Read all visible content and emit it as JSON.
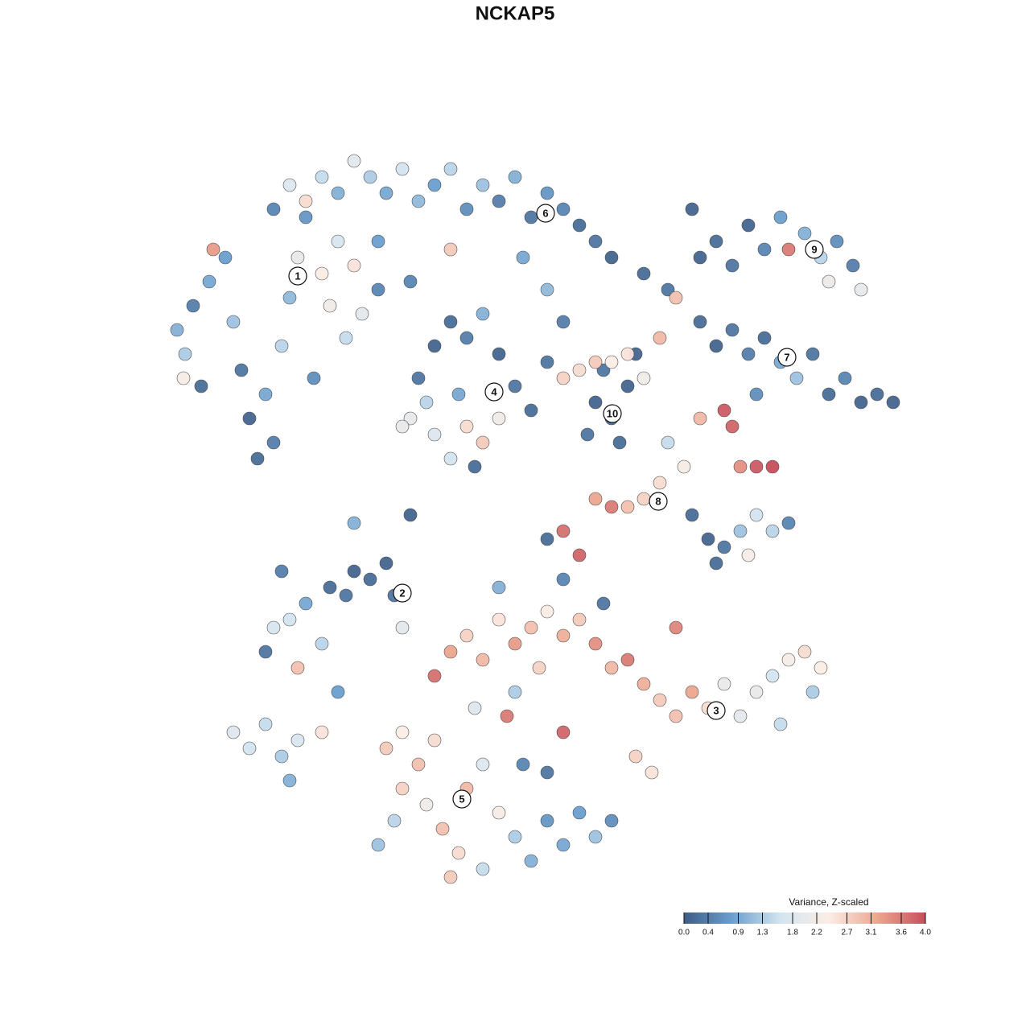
{
  "chart_data": {
    "type": "scatter",
    "title": "NCKAP5",
    "xlim": [
      0,
      93
    ],
    "ylim": [
      0,
      92
    ],
    "x": [
      2,
      3,
      4,
      6,
      5,
      8,
      9,
      10,
      11,
      12,
      14,
      13,
      15,
      16,
      17,
      18,
      20,
      21,
      22,
      24,
      23,
      19,
      25,
      27,
      6.5,
      2.8,
      14,
      16,
      18,
      20,
      22,
      24,
      26,
      28,
      30,
      32,
      34,
      36,
      38,
      40,
      42,
      44,
      46,
      48,
      50,
      52,
      54,
      56,
      60,
      63,
      45,
      48,
      50,
      36,
      27,
      31,
      31,
      32,
      34,
      36,
      38,
      40,
      42,
      44,
      46,
      34,
      36,
      38,
      40,
      42,
      37,
      33,
      54,
      56,
      58,
      55,
      57,
      59,
      53,
      48,
      50,
      52,
      54,
      56,
      58,
      60,
      62,
      67,
      69,
      71,
      73,
      75,
      77,
      78,
      80,
      82,
      84,
      86,
      87,
      83,
      66,
      67,
      69,
      71,
      73,
      75,
      77,
      79,
      81,
      83,
      85,
      87,
      89,
      91,
      74,
      64,
      63,
      65,
      67,
      70,
      71,
      72,
      74,
      76,
      62,
      60,
      58,
      56,
      54,
      66,
      68,
      70,
      72,
      74,
      76,
      78,
      73,
      69,
      50,
      52,
      48,
      13,
      14,
      16,
      17,
      18,
      20,
      21,
      23,
      24,
      26,
      28,
      29,
      30,
      15,
      22,
      34,
      36,
      38,
      40,
      42,
      44,
      46,
      48,
      50,
      52,
      54,
      56,
      58,
      60,
      62,
      64,
      66,
      68,
      70,
      72,
      74,
      76,
      78,
      80,
      82,
      81,
      77,
      59,
      61,
      44,
      47,
      39,
      55,
      50,
      42,
      64,
      50,
      43,
      28,
      30,
      32,
      34,
      30,
      33,
      35,
      37,
      38,
      40,
      42,
      44,
      46,
      48,
      50,
      52,
      54,
      56,
      40,
      36,
      29,
      45,
      48,
      27,
      9,
      11,
      13,
      15,
      17,
      20,
      16,
      24,
      31,
      39,
      30
    ],
    "y": [
      69,
      66,
      72,
      75,
      62,
      78,
      70,
      64,
      58,
      53,
      55,
      61,
      67,
      73,
      78,
      83,
      76,
      72,
      80,
      77,
      68,
      63,
      71,
      74,
      79,
      63,
      84,
      87,
      85,
      88,
      86,
      90,
      88,
      86,
      89,
      85,
      87,
      89,
      84,
      87,
      85,
      88,
      83,
      86,
      84,
      82,
      80,
      78,
      76,
      74,
      78,
      74,
      70,
      79,
      80,
      75,
      58,
      63,
      67,
      70,
      68,
      71,
      66,
      62,
      59,
      56,
      53,
      57,
      55,
      58,
      61,
      60,
      60,
      58,
      62,
      64,
      55,
      66,
      56,
      65,
      63,
      64,
      65,
      65,
      66,
      63,
      68,
      78,
      80,
      77,
      82,
      79,
      83,
      79,
      81,
      78,
      80,
      77,
      74,
      75,
      84,
      70,
      67,
      69,
      66,
      68,
      65,
      63,
      66,
      61,
      63,
      60,
      61,
      60,
      61,
      73,
      55,
      52,
      58,
      59,
      57,
      52,
      52,
      52,
      50,
      48,
      47,
      47,
      48,
      46,
      43,
      42,
      44,
      46,
      44,
      45,
      41,
      40,
      44,
      41,
      43,
      29,
      32,
      33,
      27,
      35,
      30,
      37,
      36,
      39,
      38,
      40,
      36,
      32,
      39,
      24,
      26,
      29,
      31,
      28,
      33,
      30,
      32,
      34,
      31,
      33,
      30,
      27,
      28,
      25,
      23,
      21,
      24,
      22,
      25,
      21,
      24,
      26,
      28,
      29,
      27,
      24,
      20,
      16,
      14,
      24,
      27,
      22,
      35,
      38,
      37,
      32,
      19,
      21,
      17,
      19,
      15,
      18,
      12,
      10,
      7,
      4,
      12,
      15,
      9,
      6,
      3,
      8,
      5,
      9,
      6,
      8,
      2,
      1,
      8,
      15,
      14,
      5,
      19,
      17,
      20,
      16,
      18,
      19,
      13,
      45,
      46,
      52,
      57
    ],
    "values": [
      1.0,
      1.3,
      0.4,
      0.9,
      0.2,
      0.8,
      1.2,
      0.3,
      0.1,
      0.2,
      0.4,
      0.9,
      1.4,
      1.1,
      2.0,
      0.7,
      2.4,
      2.2,
      1.7,
      2.5,
      1.5,
      0.6,
      1.9,
      0.5,
      3.3,
      2.3,
      0.5,
      1.8,
      2.6,
      1.5,
      1.0,
      1.9,
      1.3,
      0.9,
      1.6,
      1.1,
      0.8,
      1.4,
      0.6,
      1.2,
      0.4,
      1.0,
      0.3,
      0.7,
      0.5,
      0.2,
      0.3,
      0.1,
      0.2,
      0.3,
      0.9,
      1.1,
      0.4,
      2.8,
      0.8,
      0.5,
      2.0,
      0.3,
      0.1,
      0.2,
      0.4,
      1.0,
      0.1,
      0.3,
      0.2,
      1.8,
      1.6,
      2.6,
      2.8,
      2.2,
      0.9,
      1.4,
      0.1,
      0.2,
      0.1,
      0.3,
      0.2,
      0.1,
      0.3,
      0.3,
      2.7,
      2.6,
      2.8,
      2.4,
      2.5,
      2.2,
      3.0,
      0.1,
      0.2,
      0.3,
      0.1,
      0.5,
      0.8,
      3.6,
      1.0,
      1.4,
      0.6,
      0.4,
      2.0,
      2.1,
      0.1,
      0.2,
      0.1,
      0.3,
      0.4,
      0.2,
      0.9,
      1.2,
      0.3,
      0.2,
      0.5,
      0.1,
      0.2,
      0.1,
      0.6,
      2.9,
      1.5,
      2.3,
      3.0,
      3.9,
      3.8,
      3.4,
      3.9,
      4.0,
      2.6,
      2.7,
      2.9,
      3.6,
      3.2,
      0.2,
      0.1,
      0.3,
      1.2,
      1.6,
      1.4,
      0.5,
      2.3,
      0.2,
      3.7,
      3.8,
      0.2,
      0.3,
      1.7,
      1.6,
      2.9,
      0.9,
      1.4,
      0.2,
      0.3,
      0.1,
      0.2,
      0.1,
      0.3,
      1.9,
      0.4,
      0.8,
      3.7,
      3.2,
      2.7,
      3.0,
      2.5,
      3.3,
      2.9,
      2.4,
      3.1,
      2.8,
      3.4,
      3.0,
      3.6,
      3.1,
      2.8,
      2.9,
      3.2,
      2.6,
      2.1,
      1.9,
      2.0,
      1.6,
      2.3,
      2.6,
      2.4,
      1.3,
      1.5,
      2.7,
      2.5,
      1.3,
      2.7,
      1.8,
      0.3,
      0.5,
      1.0,
      3.5,
      3.8,
      3.6,
      2.8,
      2.4,
      2.9,
      2.6,
      2.7,
      2.2,
      2.9,
      2.6,
      3.0,
      1.8,
      2.3,
      1.3,
      1.0,
      0.7,
      0.9,
      0.8,
      1.2,
      0.6,
      1.5,
      2.8,
      1.4,
      0.5,
      0.3,
      1.2,
      1.8,
      1.6,
      1.5,
      1.3,
      1.7,
      2.5,
      1.0,
      1.0,
      0.1,
      0.2,
      2.0
    ],
    "annotations": [
      {
        "text": "1",
        "x": 17,
        "y": 75.7
      },
      {
        "text": "6",
        "x": 47.8,
        "y": 83.5
      },
      {
        "text": "9",
        "x": 81.2,
        "y": 79
      },
      {
        "text": "4",
        "x": 41.4,
        "y": 61.3
      },
      {
        "text": "10",
        "x": 56.1,
        "y": 58.6
      },
      {
        "text": "7",
        "x": 77.8,
        "y": 65.6
      },
      {
        "text": "8",
        "x": 61.8,
        "y": 47.7
      },
      {
        "text": "2",
        "x": 30,
        "y": 36.3
      },
      {
        "text": "3",
        "x": 69,
        "y": 21.7
      },
      {
        "text": "5",
        "x": 37.4,
        "y": 10.7
      }
    ],
    "colorbar": {
      "title": "Variance, Z-scaled",
      "lim": [
        0,
        4
      ],
      "ticks": [
        {
          "value": 0,
          "label": "0.0"
        },
        0.4,
        0.9,
        1.3,
        1.8,
        2.2,
        2.7,
        3.1,
        3.6,
        {
          "value": 4,
          "label": "4.0"
        }
      ],
      "colors": [
        "#3e5d86",
        "#6a9fcf",
        "#d3e5f0",
        "#fbede5",
        "#eca78f",
        "#c74f5c"
      ]
    }
  }
}
